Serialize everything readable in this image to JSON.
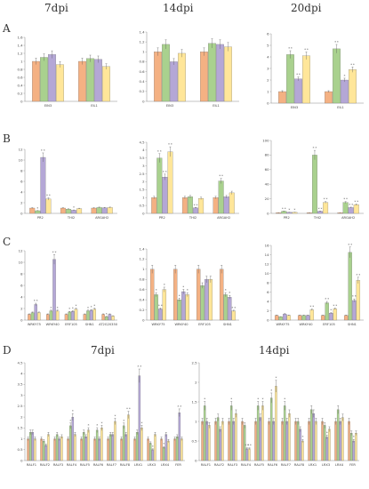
{
  "headers": {
    "top": [
      "7dpi",
      "14dpi",
      "20dpi"
    ],
    "bottom": [
      "7dpi",
      "14dpi"
    ]
  },
  "panel_letters": [
    "A",
    "B",
    "C",
    "D"
  ],
  "colors": [
    "#f4b183",
    "#a9d18e",
    "#b4a7d6",
    "#ffe699"
  ],
  "chart_data": [
    {
      "type": "bar",
      "panel": "A",
      "header": "7dpi",
      "categories": [
        "EIN3",
        "EIL1"
      ],
      "ylim": [
        0,
        1.6
      ],
      "yticks": [
        0,
        0.2,
        0.4,
        0.6,
        0.8,
        1.0,
        1.2,
        1.4,
        1.6
      ],
      "series": [
        {
          "values": [
            1.0,
            1.0
          ]
        },
        {
          "values": [
            1.1,
            1.07
          ]
        },
        {
          "values": [
            1.17,
            1.05
          ]
        },
        {
          "values": [
            0.92,
            0.87
          ]
        }
      ]
    },
    {
      "type": "bar",
      "panel": "A",
      "header": "14dpi",
      "categories": [
        "EIN3",
        "EIL1"
      ],
      "ylim": [
        0,
        1.4
      ],
      "yticks": [
        0,
        0.2,
        0.4,
        0.6,
        0.8,
        1.0,
        1.2,
        1.4
      ],
      "series": [
        {
          "values": [
            1.0,
            1.0
          ]
        },
        {
          "values": [
            1.15,
            1.17
          ]
        },
        {
          "values": [
            0.8,
            1.15
          ]
        },
        {
          "values": [
            0.97,
            1.1
          ]
        }
      ]
    },
    {
      "type": "bar",
      "panel": "A",
      "header": "20dpi",
      "categories": [
        "EIN3",
        "EIL1"
      ],
      "ylim": [
        0,
        6
      ],
      "yticks": [
        0,
        1,
        2,
        3,
        4,
        5,
        6
      ],
      "series": [
        {
          "values": [
            1.0,
            1.0
          ]
        },
        {
          "values": [
            4.2,
            4.7
          ]
        },
        {
          "values": [
            2.1,
            2.0
          ]
        },
        {
          "values": [
            4.1,
            2.9
          ]
        }
      ]
    },
    {
      "type": "bar",
      "panel": "B",
      "header": "7dpi",
      "categories": [
        "PR2",
        "THI2",
        "ARGAH2"
      ],
      "ylim": [
        0,
        12
      ],
      "yticks": [
        0,
        2,
        4,
        6,
        8,
        10,
        12
      ],
      "series": [
        {
          "values": [
            1.0,
            1.0,
            1.0
          ]
        },
        {
          "values": [
            0.5,
            0.8,
            1.1
          ]
        },
        {
          "values": [
            10.5,
            0.6,
            1.05
          ]
        },
        {
          "values": [
            2.7,
            0.9,
            1.1
          ]
        }
      ]
    },
    {
      "type": "bar",
      "panel": "B",
      "header": "14dpi",
      "categories": [
        "PR2",
        "THI2",
        "ARGAH2"
      ],
      "ylim": [
        0,
        4.5
      ],
      "yticks": [
        0,
        0.5,
        1,
        1.5,
        2,
        2.5,
        3,
        3.5,
        4,
        4.5
      ],
      "series": [
        {
          "values": [
            1.0,
            1.0,
            1.0
          ]
        },
        {
          "values": [
            3.5,
            1.05,
            2.05
          ]
        },
        {
          "values": [
            2.3,
            0.35,
            1.05
          ]
        },
        {
          "values": [
            3.9,
            0.95,
            1.3
          ]
        }
      ]
    },
    {
      "type": "bar",
      "panel": "B",
      "header": "20dpi",
      "categories": [
        "PR2",
        "THI2",
        "ARGAH2"
      ],
      "ylim": [
        0,
        100
      ],
      "yticks": [
        0,
        20,
        40,
        60,
        80,
        100
      ],
      "series": [
        {
          "values": [
            1.0,
            1.0,
            1.0
          ]
        },
        {
          "values": [
            3.0,
            80.0,
            15.0
          ]
        },
        {
          "values": [
            1.5,
            3.0,
            8.0
          ]
        },
        {
          "values": [
            1.5,
            15.0,
            12.0
          ]
        }
      ]
    },
    {
      "type": "bar",
      "panel": "C",
      "header": "7dpi",
      "categories": [
        "WRKY75",
        "WRKY40",
        "ERF105",
        "SHN1",
        "AT2G20350"
      ],
      "ylim": [
        0,
        12
      ],
      "yticks": [
        0,
        2,
        4,
        6,
        8,
        10,
        12
      ],
      "series": [
        {
          "values": [
            1.0,
            1.0,
            1.0,
            1.0,
            1.0
          ]
        },
        {
          "values": [
            1.3,
            1.6,
            1.4,
            1.6,
            0.6
          ]
        },
        {
          "values": [
            2.7,
            10.5,
            1.5,
            1.7,
            1.0
          ]
        },
        {
          "values": [
            1.3,
            1.6,
            1.9,
            1.9,
            0.7
          ]
        }
      ]
    },
    {
      "type": "bar",
      "panel": "C",
      "header": "14dpi",
      "categories": [
        "WRKY75",
        "WRKY40",
        "ERF105",
        "SHN1"
      ],
      "ylim": [
        0,
        1.4
      ],
      "yticks": [
        0,
        0.2,
        0.4,
        0.6,
        0.8,
        1.0,
        1.2,
        1.4
      ],
      "series": [
        {
          "values": [
            1.0,
            1.0,
            1.0,
            1.0
          ]
        },
        {
          "values": [
            0.5,
            0.4,
            0.68,
            0.5
          ]
        },
        {
          "values": [
            0.22,
            0.56,
            0.8,
            0.45
          ]
        },
        {
          "values": [
            0.6,
            0.5,
            0.8,
            0.18
          ]
        }
      ]
    },
    {
      "type": "bar",
      "panel": "C",
      "header": "20dpi",
      "categories": [
        "WRKY75",
        "WRKY40",
        "ERF105",
        "SHN1"
      ],
      "ylim": [
        0,
        16
      ],
      "yticks": [
        0,
        2,
        4,
        6,
        8,
        10,
        12,
        14,
        16
      ],
      "series": [
        {
          "values": [
            1.0,
            1.0,
            1.0,
            1.0
          ]
        },
        {
          "values": [
            0.7,
            1.0,
            3.7,
            14.5
          ]
        },
        {
          "values": [
            1.3,
            1.0,
            1.5,
            4.2
          ]
        },
        {
          "values": [
            1.0,
            2.2,
            2.4,
            8.5
          ]
        }
      ]
    },
    {
      "type": "bar",
      "panel": "D",
      "header": "7dpi",
      "categories": [
        "RALF1",
        "RALF2",
        "RALF3",
        "RALF4",
        "RALF5",
        "RALF6",
        "RALF7",
        "RALF8",
        "LRX1",
        "LRX3",
        "LRX4",
        "FER"
      ],
      "ylim": [
        0,
        4.5
      ],
      "yticks": [
        0,
        0.5,
        1,
        1.5,
        2,
        2.5,
        3,
        3.5,
        4,
        4.5
      ],
      "series": [
        {
          "values": [
            1.0,
            1.0,
            1.0,
            1.0,
            1.0,
            1.0,
            1.0,
            1.0,
            1.0,
            1.0,
            1.0,
            1.0
          ]
        },
        {
          "values": [
            1.3,
            0.9,
            1.2,
            1.6,
            1.3,
            1.4,
            1.2,
            1.6,
            1.3,
            0.8,
            0.6,
            1.1
          ]
        },
        {
          "values": [
            1.3,
            0.7,
            1.0,
            2.0,
            1.1,
            1.0,
            1.2,
            1.2,
            3.9,
            0.5,
            1.2,
            2.2
          ]
        },
        {
          "values": [
            1.0,
            1.2,
            1.1,
            1.2,
            1.4,
            1.5,
            1.8,
            2.1,
            1.5,
            1.2,
            0.9,
            1.0
          ]
        }
      ]
    },
    {
      "type": "bar",
      "panel": "D",
      "header": "14dpi",
      "categories": [
        "RALF1",
        "RALF2",
        "RALF3",
        "RALF4",
        "RALF5",
        "RALF6",
        "RALF7",
        "RALF8",
        "LRX1",
        "LRX3",
        "LRX4",
        "FER"
      ],
      "ylim": [
        0,
        2.5
      ],
      "yticks": [
        0,
        0.5,
        1,
        1.5,
        2,
        2.5
      ],
      "series": [
        {
          "values": [
            1.0,
            1.0,
            1.0,
            1.0,
            1.0,
            1.0,
            1.0,
            1.0,
            1.0,
            1.0,
            1.0,
            1.0
          ]
        },
        {
          "values": [
            1.4,
            1.1,
            1.4,
            0.9,
            1.4,
            1.6,
            1.4,
            1.0,
            1.3,
            0.9,
            1.3,
            0.7
          ]
        },
        {
          "values": [
            1.0,
            0.8,
            1.0,
            0.3,
            1.1,
            1.0,
            1.0,
            0.8,
            1.2,
            0.6,
            1.0,
            0.5
          ]
        },
        {
          "values": [
            0.9,
            1.0,
            1.2,
            0.3,
            1.4,
            1.9,
            1.2,
            0.5,
            1.0,
            0.8,
            1.1,
            0.7
          ]
        }
      ]
    }
  ]
}
